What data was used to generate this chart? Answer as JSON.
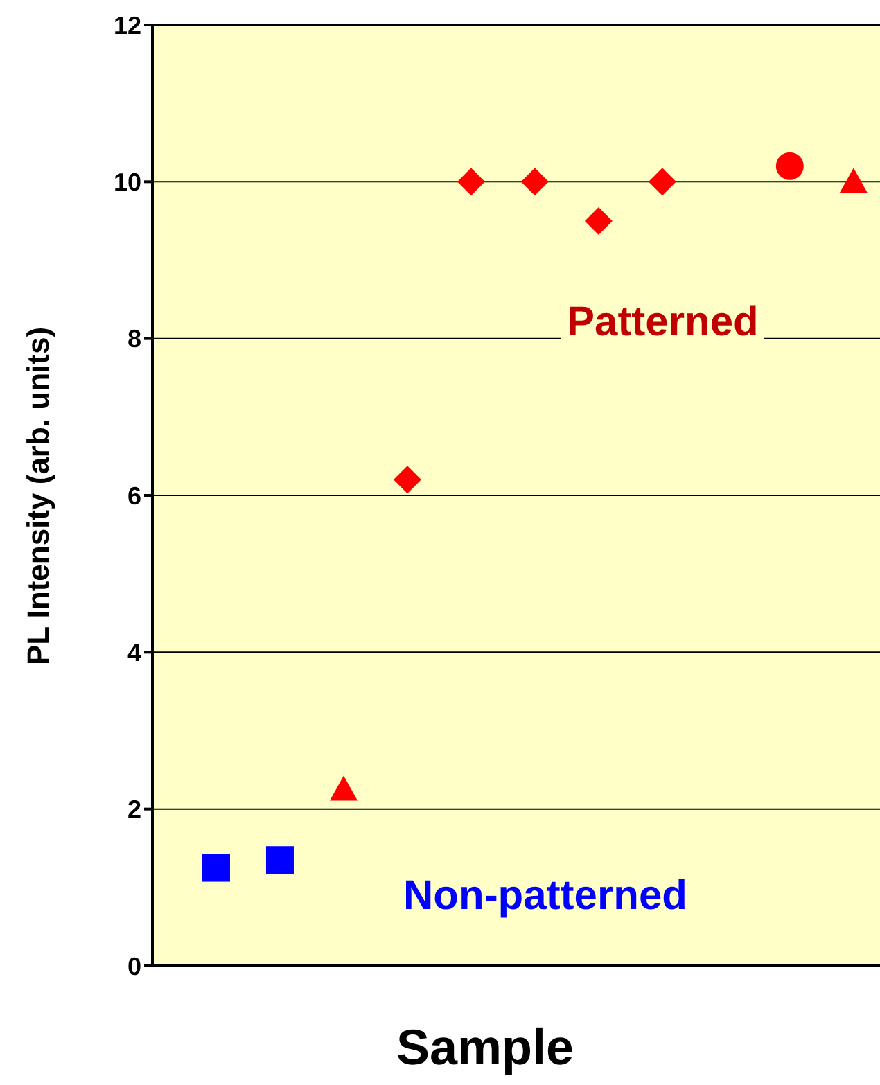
{
  "chart_data": {
    "type": "scatter",
    "xlabel": "Sample",
    "ylabel": "PL Intensity (arb. units)",
    "categories": [
      null,
      null,
      null,
      null,
      null,
      null,
      null,
      null,
      null,
      null,
      null
    ],
    "series": [
      {
        "name": "Non-patterned",
        "color": "#0000ff",
        "marker": "square",
        "values": [
          1.25,
          1.35,
          null,
          null,
          null,
          null,
          null,
          null,
          null,
          null,
          null
        ]
      },
      {
        "color": "#ff0000",
        "marker": "triangle",
        "values": [
          null,
          null,
          2.25,
          null,
          null,
          null,
          null,
          null,
          null,
          null,
          null
        ]
      },
      {
        "name": "Patterned",
        "color": "#ff0000",
        "marker": "diamond",
        "values": [
          null,
          null,
          null,
          6.2,
          10,
          10,
          9.5,
          10,
          null,
          null,
          null
        ]
      },
      {
        "color": "#ff0000",
        "marker": "circle",
        "values": [
          null,
          null,
          null,
          null,
          null,
          null,
          null,
          null,
          null,
          10.2,
          null
        ]
      },
      {
        "color": "#ff0000",
        "marker": "triangle",
        "values": [
          null,
          null,
          null,
          null,
          null,
          null,
          null,
          null,
          null,
          null,
          10
        ]
      }
    ],
    "ylim": [
      0,
      12
    ],
    "yticks": [
      0,
      2,
      4,
      6,
      8,
      10,
      12
    ],
    "grid": "y"
  }
}
